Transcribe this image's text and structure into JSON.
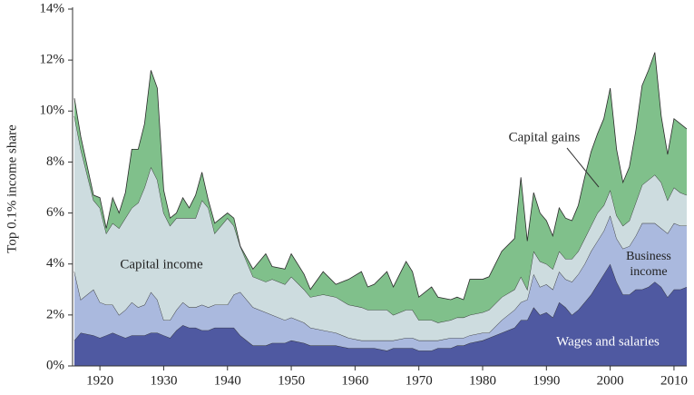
{
  "chart_data": {
    "type": "stacked_area",
    "y_label": "Top 0.1% income share",
    "x": [
      1916,
      1917,
      1919,
      1920,
      1921,
      1922,
      1923,
      1924,
      1925,
      1926,
      1927,
      1928,
      1929,
      1930,
      1931,
      1932,
      1933,
      1934,
      1935,
      1936,
      1937,
      1938,
      1940,
      1941,
      1942,
      1944,
      1946,
      1947,
      1949,
      1950,
      1952,
      1953,
      1955,
      1957,
      1959,
      1961,
      1962,
      1963,
      1965,
      1966,
      1968,
      1969,
      1970,
      1972,
      1973,
      1975,
      1976,
      1977,
      1978,
      1980,
      1981,
      1983,
      1985,
      1986,
      1987,
      1988,
      1989,
      1990,
      1991,
      1992,
      1993,
      1994,
      1995,
      1996,
      1997,
      1998,
      1999,
      2000,
      2001,
      2002,
      2003,
      2004,
      2005,
      2006,
      2007,
      2008,
      2009,
      2010,
      2011,
      2012
    ],
    "series": [
      {
        "name": "Wages and salaries",
        "color": "#4f59a1",
        "values": [
          1.0,
          1.3,
          1.2,
          1.1,
          1.2,
          1.3,
          1.2,
          1.1,
          1.2,
          1.2,
          1.2,
          1.3,
          1.3,
          1.2,
          1.1,
          1.4,
          1.6,
          1.5,
          1.5,
          1.4,
          1.4,
          1.5,
          1.5,
          1.5,
          1.2,
          0.8,
          0.8,
          0.9,
          0.9,
          1.0,
          0.9,
          0.8,
          0.8,
          0.8,
          0.7,
          0.7,
          0.7,
          0.7,
          0.6,
          0.7,
          0.7,
          0.7,
          0.6,
          0.6,
          0.7,
          0.7,
          0.8,
          0.8,
          0.9,
          1.0,
          1.1,
          1.3,
          1.5,
          1.8,
          1.8,
          2.3,
          2.0,
          2.1,
          1.9,
          2.5,
          2.3,
          2.0,
          2.2,
          2.5,
          2.8,
          3.2,
          3.6,
          4.0,
          3.3,
          2.8,
          2.8,
          3.0,
          3.0,
          3.1,
          3.3,
          3.1,
          2.7,
          3.0,
          3.0,
          3.1
        ]
      },
      {
        "name": "Business income",
        "color": "#aab9de",
        "values": [
          2.7,
          1.3,
          1.8,
          1.4,
          1.2,
          1.1,
          0.8,
          1.1,
          1.3,
          1.1,
          1.2,
          1.6,
          1.3,
          0.6,
          0.7,
          0.8,
          0.9,
          0.8,
          0.8,
          1.0,
          0.9,
          0.9,
          0.9,
          1.3,
          1.7,
          1.5,
          1.3,
          1.1,
          0.9,
          0.9,
          0.8,
          0.7,
          0.6,
          0.5,
          0.4,
          0.3,
          0.3,
          0.3,
          0.4,
          0.3,
          0.4,
          0.4,
          0.4,
          0.4,
          0.3,
          0.4,
          0.3,
          0.3,
          0.3,
          0.3,
          0.2,
          0.5,
          0.7,
          0.7,
          0.8,
          1.3,
          1.1,
          1.1,
          1.1,
          1.2,
          1.1,
          1.3,
          1.4,
          1.5,
          1.7,
          1.7,
          1.7,
          1.9,
          1.7,
          1.8,
          1.9,
          2.1,
          2.6,
          2.5,
          2.3,
          2.3,
          2.5,
          2.6,
          2.5,
          2.4
        ]
      },
      {
        "name": "Capital income",
        "color": "#cddcdf",
        "values": [
          6.1,
          5.9,
          3.5,
          3.7,
          2.8,
          3.2,
          3.4,
          3.6,
          3.7,
          4.1,
          4.6,
          4.9,
          4.7,
          4.2,
          3.7,
          3.6,
          3.3,
          3.5,
          3.5,
          4.1,
          3.9,
          2.8,
          3.4,
          2.7,
          1.8,
          1.2,
          1.2,
          1.4,
          1.4,
          1.6,
          1.3,
          1.2,
          1.4,
          1.4,
          1.3,
          1.3,
          1.2,
          1.2,
          1.2,
          1.0,
          1.1,
          1.1,
          0.8,
          0.8,
          0.7,
          0.7,
          0.8,
          0.8,
          0.8,
          0.8,
          0.9,
          0.9,
          0.8,
          1.0,
          0.4,
          0.9,
          1.0,
          0.8,
          0.8,
          0.8,
          0.8,
          0.9,
          0.9,
          1.0,
          1.0,
          1.1,
          1.0,
          1.0,
          0.9,
          0.9,
          1.0,
          1.3,
          1.5,
          1.7,
          1.9,
          1.8,
          1.3,
          1.4,
          1.3,
          1.2
        ]
      },
      {
        "name": "Capital gains",
        "color": "#80c08b",
        "values": [
          0.7,
          0.5,
          0.2,
          0.4,
          0.2,
          1.0,
          0.6,
          1.0,
          2.3,
          2.1,
          2.5,
          3.8,
          3.6,
          0.9,
          0.3,
          0.2,
          0.8,
          0.4,
          0.9,
          1.1,
          0.3,
          0.4,
          0.2,
          0.3,
          0.0,
          0.3,
          1.1,
          0.5,
          0.6,
          0.9,
          0.6,
          0.3,
          0.9,
          0.5,
          1.0,
          1.4,
          0.9,
          1.0,
          1.5,
          1.1,
          1.9,
          1.5,
          0.9,
          1.3,
          1.0,
          0.8,
          0.8,
          0.7,
          1.4,
          1.3,
          1.3,
          1.8,
          2.0,
          3.9,
          1.9,
          2.3,
          1.9,
          1.7,
          1.3,
          1.7,
          1.6,
          1.5,
          1.8,
          2.4,
          2.9,
          3.1,
          3.4,
          4.0,
          2.6,
          1.7,
          2.1,
          2.8,
          3.9,
          4.3,
          4.8,
          2.6,
          1.8,
          2.7,
          2.7,
          2.6
        ]
      }
    ],
    "xlim": [
      1916,
      2012
    ],
    "xticks": [
      1920,
      1930,
      1940,
      1950,
      1960,
      1970,
      1980,
      1990,
      2000,
      2010
    ],
    "ylim": [
      0,
      14
    ],
    "yticks": [
      {
        "value": 0,
        "label": "0%"
      },
      {
        "value": 2,
        "label": "2%"
      },
      {
        "value": 4,
        "label": "4%"
      },
      {
        "value": 6,
        "label": "6%"
      },
      {
        "value": 8,
        "label": "8%"
      },
      {
        "value": 10,
        "label": "10%"
      },
      {
        "value": 12,
        "label": "12%"
      },
      {
        "value": 14,
        "label": "14%"
      }
    ]
  }
}
